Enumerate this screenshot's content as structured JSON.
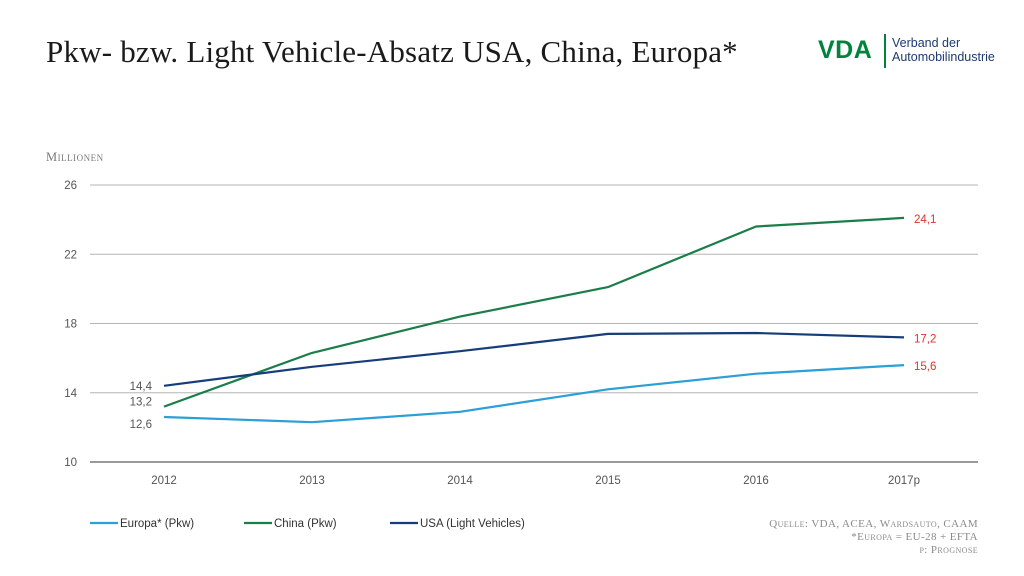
{
  "header": {
    "title": "Pkw- bzw. Light Vehicle-Absatz USA, China, Europa*"
  },
  "logo": {
    "mark": "VDA",
    "line1": "Verband der",
    "line2": "Automobilindustrie"
  },
  "source": {
    "line1": "Quelle: VDA, ACEA, Wardsauto, CAAM",
    "line2": "*Europa = EU-28 + EFTA",
    "line3": "p: Prognose"
  },
  "chart_data": {
    "type": "line",
    "ylabel": "Millionen",
    "xlabel": "",
    "categories": [
      "2012",
      "2013",
      "2014",
      "2015",
      "2016",
      "2017p"
    ],
    "ylim": [
      10,
      26
    ],
    "yticks": [
      10,
      14,
      18,
      22,
      26
    ],
    "grid": true,
    "legend_position": "bottom-left",
    "series": [
      {
        "name": "Europa* (Pkw)",
        "color": "#2a9fd8",
        "values": [
          12.6,
          12.3,
          12.9,
          14.2,
          15.1,
          15.6
        ],
        "start_label": "12,6",
        "end_label": "15,6"
      },
      {
        "name": "China (Pkw)",
        "color": "#1a7d4a",
        "values": [
          13.2,
          16.3,
          18.4,
          20.1,
          23.6,
          24.1
        ],
        "start_label": "13,2",
        "end_label": "24,1"
      },
      {
        "name": "USA (Light Vehicles)",
        "color": "#163d7a",
        "values": [
          14.4,
          15.5,
          16.4,
          17.4,
          17.45,
          17.2
        ],
        "start_label": "14,4",
        "end_label": "17,2"
      }
    ],
    "end_label_color": "#e0322b",
    "start_label_color": "#555555"
  }
}
